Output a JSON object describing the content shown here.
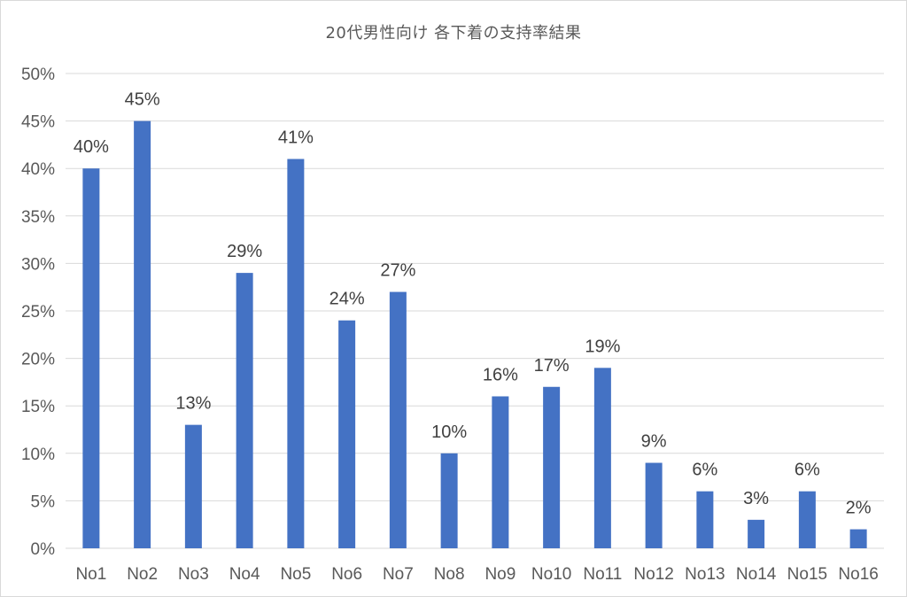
{
  "chart_data": {
    "type": "bar",
    "title": "20代男性向け 各下着の支持率結果",
    "xlabel": "",
    "ylabel": "",
    "categories": [
      "No1",
      "No2",
      "No3",
      "No4",
      "No5",
      "No6",
      "No7",
      "No8",
      "No9",
      "No10",
      "No11",
      "No12",
      "No13",
      "No14",
      "No15",
      "No16"
    ],
    "values": [
      40,
      45,
      13,
      29,
      41,
      24,
      27,
      10,
      16,
      17,
      19,
      9,
      6,
      3,
      6,
      2
    ],
    "value_labels": [
      "40%",
      "45%",
      "13%",
      "29%",
      "41%",
      "24%",
      "27%",
      "10%",
      "16%",
      "17%",
      "19%",
      "9%",
      "6%",
      "3%",
      "6%",
      "2%"
    ],
    "ylim": [
      0,
      50
    ],
    "yticks": [
      0,
      5,
      10,
      15,
      20,
      25,
      30,
      35,
      40,
      45,
      50
    ],
    "ytick_labels": [
      "0%",
      "5%",
      "10%",
      "15%",
      "20%",
      "25%",
      "30%",
      "35%",
      "40%",
      "45%",
      "50%"
    ],
    "grid": true,
    "legend": "none",
    "bar_color": "#4472C4",
    "grid_color": "#d9d9d9"
  }
}
